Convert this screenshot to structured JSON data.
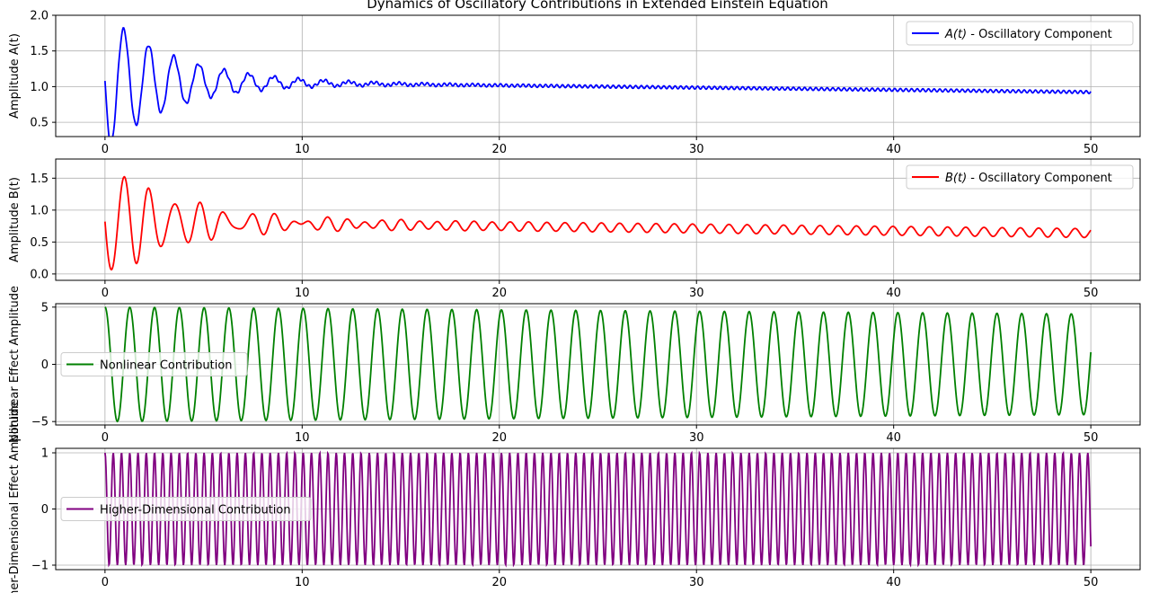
{
  "figure": {
    "title": "Dynamics of Oscillatory Contributions in Extended Einstein Equation"
  },
  "chart_data": [
    {
      "type": "line",
      "ylabel": "Amplitude A(t)",
      "xlim": [
        -2.5,
        52.5
      ],
      "ylim": [
        0.3,
        2.0
      ],
      "xticks": [
        0,
        10,
        20,
        30,
        40,
        50
      ],
      "yticks": [
        0.5,
        1.0,
        1.5,
        2.0
      ],
      "ytick_labels": [
        "0.5",
        "1.0",
        "1.5",
        "2.0"
      ],
      "grid": true,
      "legend_position": "upper-right",
      "series": [
        {
          "name": "$A(t)$ - Oscillatory Component",
          "legend_main": "A(t)",
          "legend_suffix": " - Oscillatory Component",
          "color": "#0000ff",
          "model": {
            "base": 1.08,
            "decay_rate": 0.0029,
            "damped_amplitude": 0.95,
            "damping": 0.28,
            "omega": 4.95,
            "phase": 3.1416,
            "ripple_amplitude": 0.02,
            "ripple_omega": 22
          }
        }
      ]
    },
    {
      "type": "line",
      "ylabel": "Amplitude B(t)",
      "xlim": [
        -2.5,
        52.5
      ],
      "ylim": [
        -0.1,
        1.8
      ],
      "xticks": [
        0,
        10,
        20,
        30,
        40,
        50
      ],
      "yticks": [
        0.0,
        0.5,
        1.0,
        1.5
      ],
      "ytick_labels": [
        "0.0",
        "0.5",
        "1.0",
        "1.5"
      ],
      "grid": true,
      "legend_position": "upper-right",
      "series": [
        {
          "name": "$B(t)$ - Oscillatory Component",
          "legend_main": "B(t)",
          "legend_suffix": " - Oscillatory Component",
          "color": "#ff0000",
          "model": {
            "base": 0.82,
            "decay_rate": 0.0044,
            "damped_amplitude": 0.88,
            "damping": 0.26,
            "omega": 4.9,
            "phase": 3.1416,
            "ripple_amplitude": 0.07,
            "ripple_omega": 6.8
          }
        }
      ]
    },
    {
      "type": "line",
      "ylabel": "Nonlinear Effect Amplitude",
      "xlim": [
        -2.5,
        52.5
      ],
      "ylim": [
        -5.3,
        5.3
      ],
      "xticks": [
        0,
        10,
        20,
        30,
        40,
        50
      ],
      "yticks": [
        -5,
        0,
        5
      ],
      "ytick_labels": [
        "−5",
        "0",
        "5"
      ],
      "grid": true,
      "legend_position": "center-left",
      "series": [
        {
          "name": "Nonlinear Contribution",
          "color": "#008000",
          "model": {
            "amplitude": 5.0,
            "end_amplitude": 4.4,
            "omega": 5.0,
            "phase": 0
          }
        }
      ]
    },
    {
      "type": "line",
      "ylabel": "Higher-Dimensional Effect Amplitude",
      "xlim": [
        -2.5,
        52.5
      ],
      "ylim": [
        -1.08,
        1.08
      ],
      "xticks": [
        0,
        10,
        20,
        30,
        40,
        50
      ],
      "yticks": [
        -1,
        0,
        1
      ],
      "ytick_labels": [
        "−1",
        "0",
        "1"
      ],
      "grid": true,
      "legend_position": "center-left",
      "series": [
        {
          "name": "Higher-Dimensional Contribution",
          "color": "#800080",
          "model": {
            "amplitude": 1.0,
            "omega": 15.0,
            "phase": 0
          }
        }
      ]
    }
  ]
}
